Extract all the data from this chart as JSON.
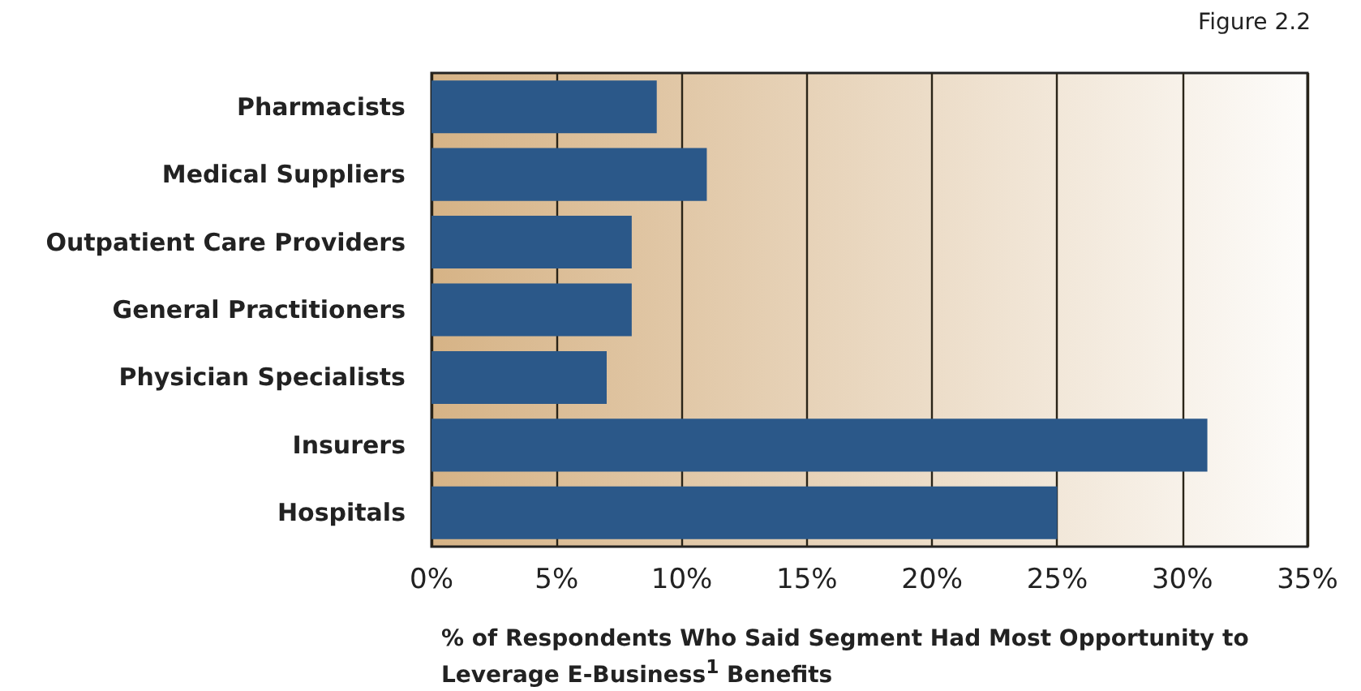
{
  "chart_data": {
    "type": "bar",
    "orientation": "horizontal",
    "categories": [
      "Pharmacists",
      "Medical Suppliers",
      "Outpatient Care Providers",
      "General Practitioners",
      "Physician Specialists",
      "Insurers",
      "Hospitals"
    ],
    "values": [
      9,
      11,
      8,
      8,
      7,
      31,
      25
    ],
    "color": "#2b5889",
    "xlim": [
      0,
      35
    ],
    "xticks": [
      {
        "value": 0,
        "label": "0%"
      },
      {
        "value": 5,
        "label": "5%"
      },
      {
        "value": 10,
        "label": "10%"
      },
      {
        "value": 15,
        "label": "15%"
      },
      {
        "value": 20,
        "label": "20%"
      },
      {
        "value": 25,
        "label": "25%"
      },
      {
        "value": 30,
        "label": "30%"
      },
      {
        "value": 35,
        "label": "35%"
      }
    ],
    "xlabel": "% of Respondents Who Said Segment Had Most Opportunity to Leverage E-Business$^{1}$ Benefits",
    "annotations": [
      "Figure 2.2"
    ],
    "grid": "x"
  }
}
